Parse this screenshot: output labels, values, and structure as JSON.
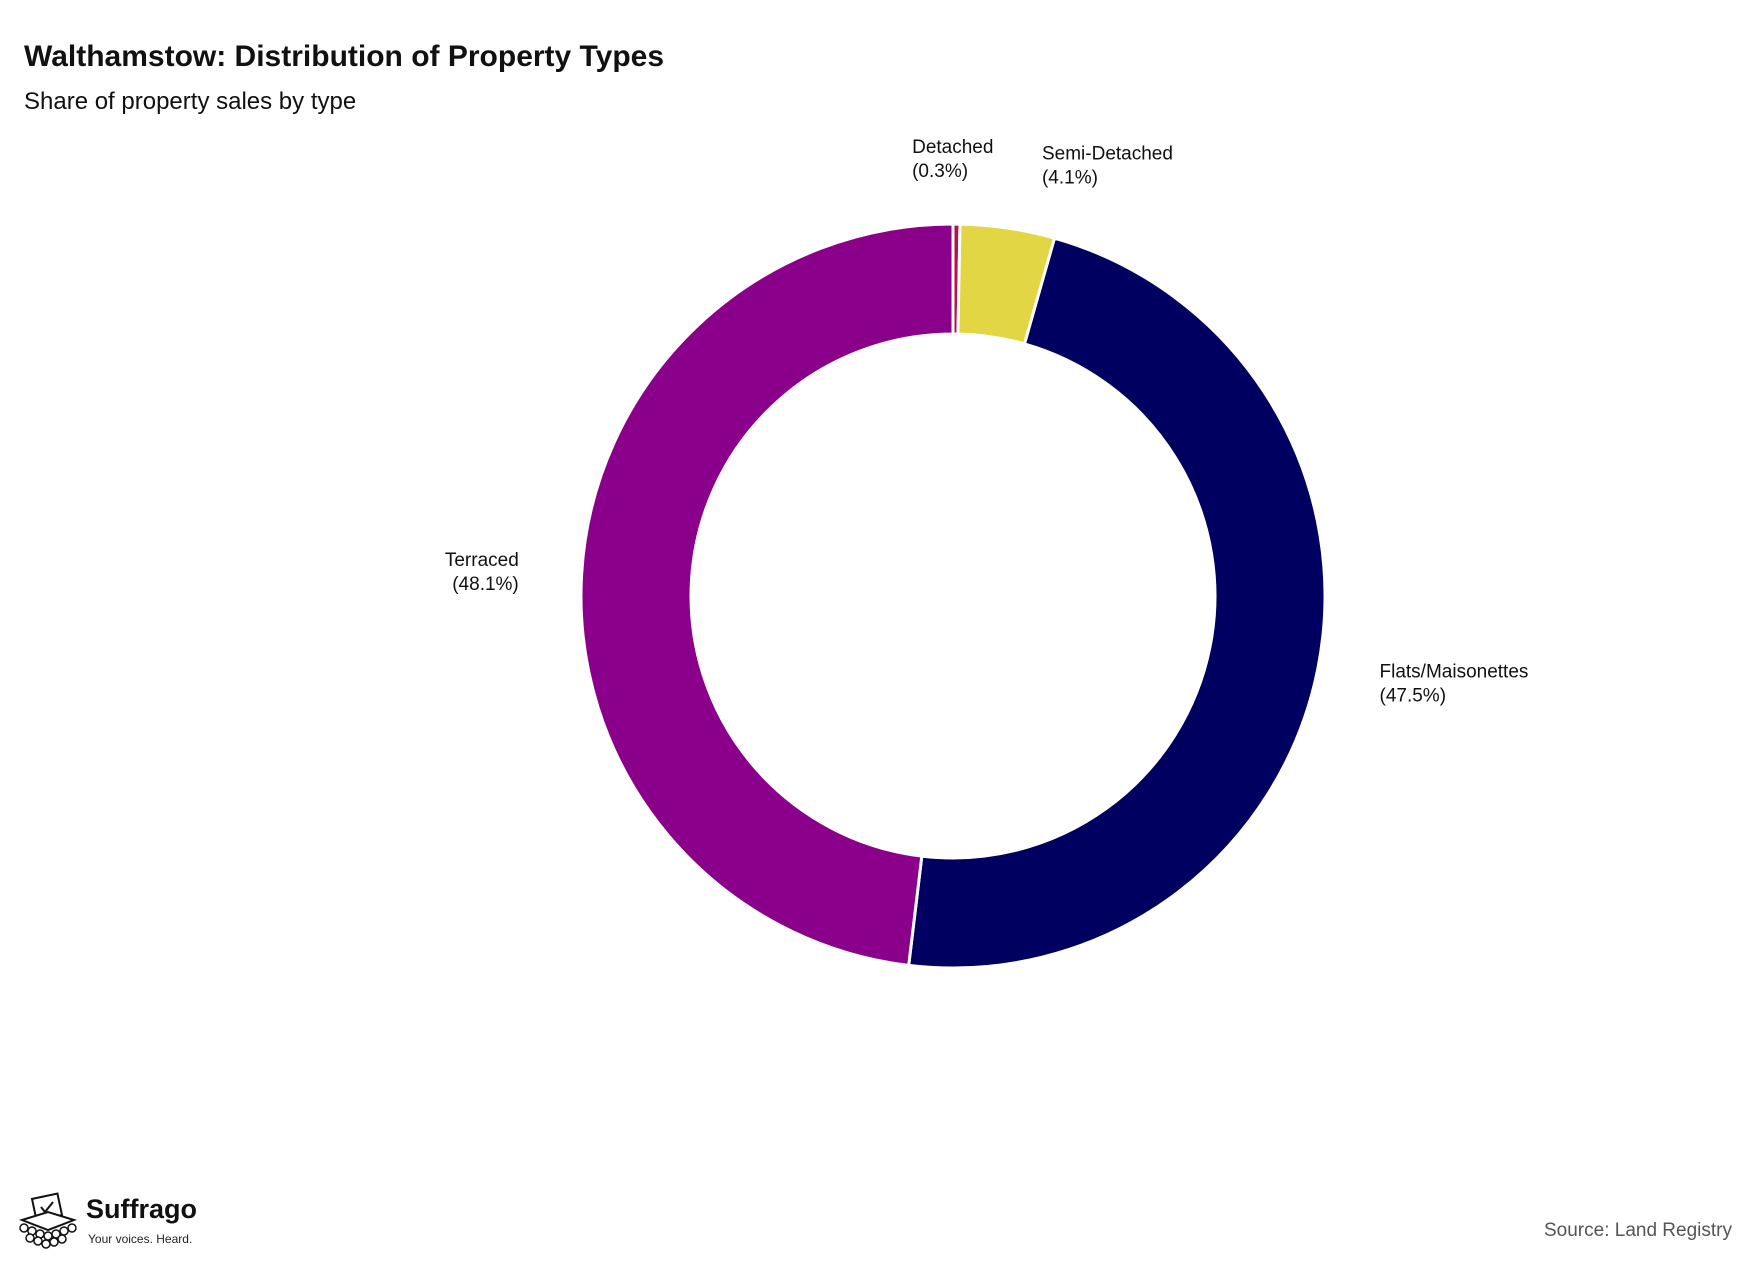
{
  "title": "Walthamstow: Distribution of Property Types",
  "subtitle": "Share of property sales by type",
  "source": "Source: Land Registry",
  "logo": {
    "name": "Suffrago",
    "tagline": "Your voices. Heard.",
    "icon": "ballot-box-icon"
  },
  "chart_data": {
    "type": "pie",
    "donut": true,
    "title": "Walthamstow: Distribution of Property Types",
    "subtitle": "Share of property sales by type",
    "categories": [
      "Detached",
      "Semi-Detached",
      "Flats/Maisonettes",
      "Terraced"
    ],
    "values": [
      0.3,
      4.1,
      47.5,
      48.1
    ],
    "percent_labels": [
      "(0.3%)",
      "(4.1%)",
      "(47.5%)",
      "(48.1%)"
    ],
    "colors": [
      "#b5124a",
      "#e3d644",
      "#000060",
      "#8b008b"
    ],
    "start_angle": "12 o'clock",
    "direction": "clockwise",
    "legend": "none"
  }
}
